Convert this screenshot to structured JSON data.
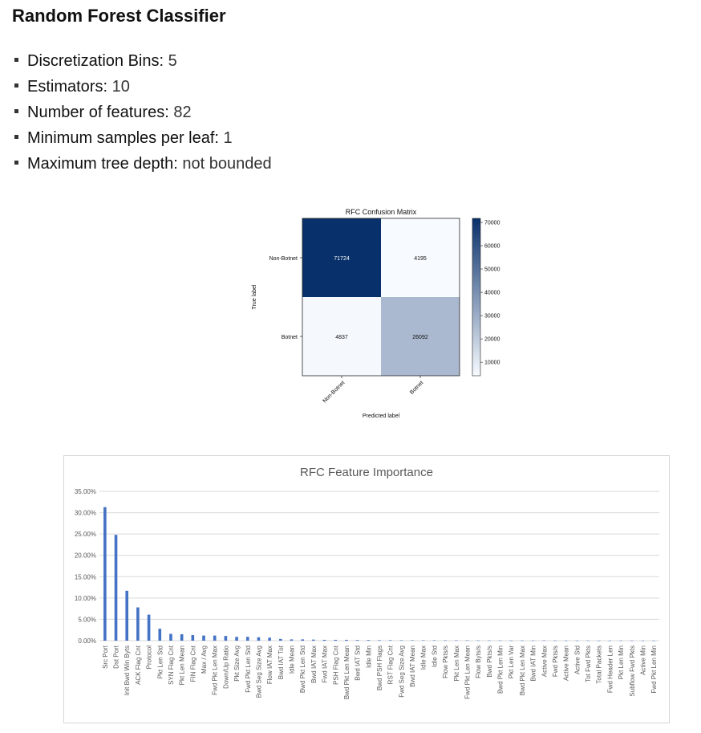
{
  "page": {
    "title": "Random Forest Classifier",
    "params": [
      {
        "key": "Discretization Bins",
        "value": "5"
      },
      {
        "key": "Estimators",
        "value": "10"
      },
      {
        "key": "Number of features",
        "value": "82"
      },
      {
        "key": "Minimum samples per leaf",
        "value": "1"
      },
      {
        "key": "Maximum tree depth",
        "value": "not bounded"
      }
    ],
    "sep": ": "
  },
  "chart_data": [
    {
      "type": "heatmap",
      "title": "RFC Confusion Matrix",
      "xlabel": "Predicted label",
      "ylabel": "True label",
      "x_categories": [
        "Non-Botnet",
        "Botnet"
      ],
      "y_categories": [
        "Non-Botnet",
        "Botnet"
      ],
      "values": [
        [
          71724,
          4195
        ],
        [
          4837,
          26092
        ]
      ],
      "colorbar": {
        "ticks": [
          10000,
          20000,
          30000,
          40000,
          50000,
          60000,
          70000
        ],
        "range": [
          4195,
          71724
        ]
      },
      "colors": {
        "low": "#f7fbff",
        "high": "#08306b"
      }
    },
    {
      "type": "bar",
      "title": "RFC Feature Importance",
      "ylim": [
        0,
        35
      ],
      "yticks": [
        "0.00%",
        "5.00%",
        "10.00%",
        "15.00%",
        "20.00%",
        "25.00%",
        "30.00%",
        "35.00%"
      ],
      "grid": true,
      "bar_color": "#4472c4",
      "categories": [
        "Src Port",
        "Dst Port",
        "Init Bwd Win Byts",
        "ACK Flag Cnt",
        "Protocol",
        "Pkt Len Std",
        "SYN Flag Cnt",
        "Pkt Len Mean",
        "FIN Flag Cnt",
        "Max / Avg",
        "Fwd Pkt Len Max",
        "Down/Up Ratio",
        "Pkt Size Avg",
        "Fwd Pkt Len Std",
        "Bwd Seg Size Avg",
        "Flow IAT Max",
        "Bwd IAT Tot",
        "Idle Mean",
        "Bwd Pkt Len Std",
        "Bwd IAT Max",
        "Fwd IAT Max",
        "PSH Flag Cnt",
        "Bwd Pkt Len Mean",
        "Bwd IAT Std",
        "Idle Min",
        "Bwd PSH Flags",
        "RST Flag Cnt",
        "Fwd Seg Size Avg",
        "Bwd IAT Mean",
        "Idle Max",
        "Idle Std",
        "Flow Pkts/s",
        "Pkt Len Max",
        "Fwd Pkt Len Mean",
        "Flow Byts/s",
        "Bwd Pkts/s",
        "Bwd Pkt Len Min",
        "Pkt Len Var",
        "Bwd Pkt Len Max",
        "Bwd IAT Min",
        "Active Max",
        "Fwd Pkts/s",
        "Active Mean",
        "Active Std",
        "Tot Fwd Pkts",
        "Total Packets",
        "Fwd Header Len",
        "Pkt Len Min",
        "Subflow Fwd Pkts",
        "Active Min",
        "Fwd Pkt Len Min"
      ],
      "values": [
        31.3,
        24.8,
        11.7,
        7.8,
        6.1,
        2.8,
        1.6,
        1.5,
        1.3,
        1.2,
        1.2,
        1.1,
        0.9,
        0.9,
        0.8,
        0.7,
        0.4,
        0.3,
        0.3,
        0.25,
        0.2,
        0.2,
        0.2,
        0.15,
        0.15,
        0.12,
        0.12,
        0.1,
        0.1,
        0.1,
        0.1,
        0.08,
        0.08,
        0.08,
        0.06,
        0.06,
        0.06,
        0.05,
        0.05,
        0.05,
        0.05,
        0.04,
        0.04,
        0.04,
        0.04,
        0.03,
        0.03,
        0.03,
        0.03,
        0.02,
        0.02
      ]
    }
  ]
}
